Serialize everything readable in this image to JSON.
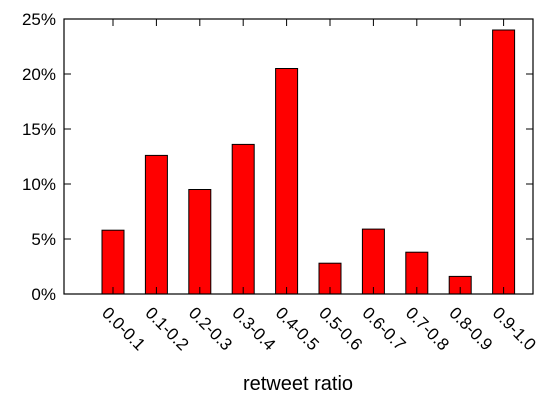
{
  "chart_data": {
    "type": "bar",
    "xlabel": "retweet ratio",
    "ylabel": "",
    "ylim": [
      0,
      25
    ],
    "y_ticks": [
      0,
      5,
      10,
      15,
      20,
      25
    ],
    "y_tick_labels": [
      "0%",
      "5%",
      "10%",
      "15%",
      "20%",
      "25%"
    ],
    "categories": [
      "0.0-0.1",
      "0.1-0.2",
      "0.2-0.3",
      "0.3-0.4",
      "0.4-0.5",
      "0.5-0.6",
      "0.6-0.7",
      "0.7-0.8",
      "0.8-0.9",
      "0.9-1.0"
    ],
    "values": [
      5.8,
      12.6,
      9.5,
      13.6,
      20.5,
      2.8,
      5.9,
      3.8,
      1.6,
      24.0
    ],
    "bar_color": "#ff0000",
    "grid": false,
    "legend": "none"
  }
}
